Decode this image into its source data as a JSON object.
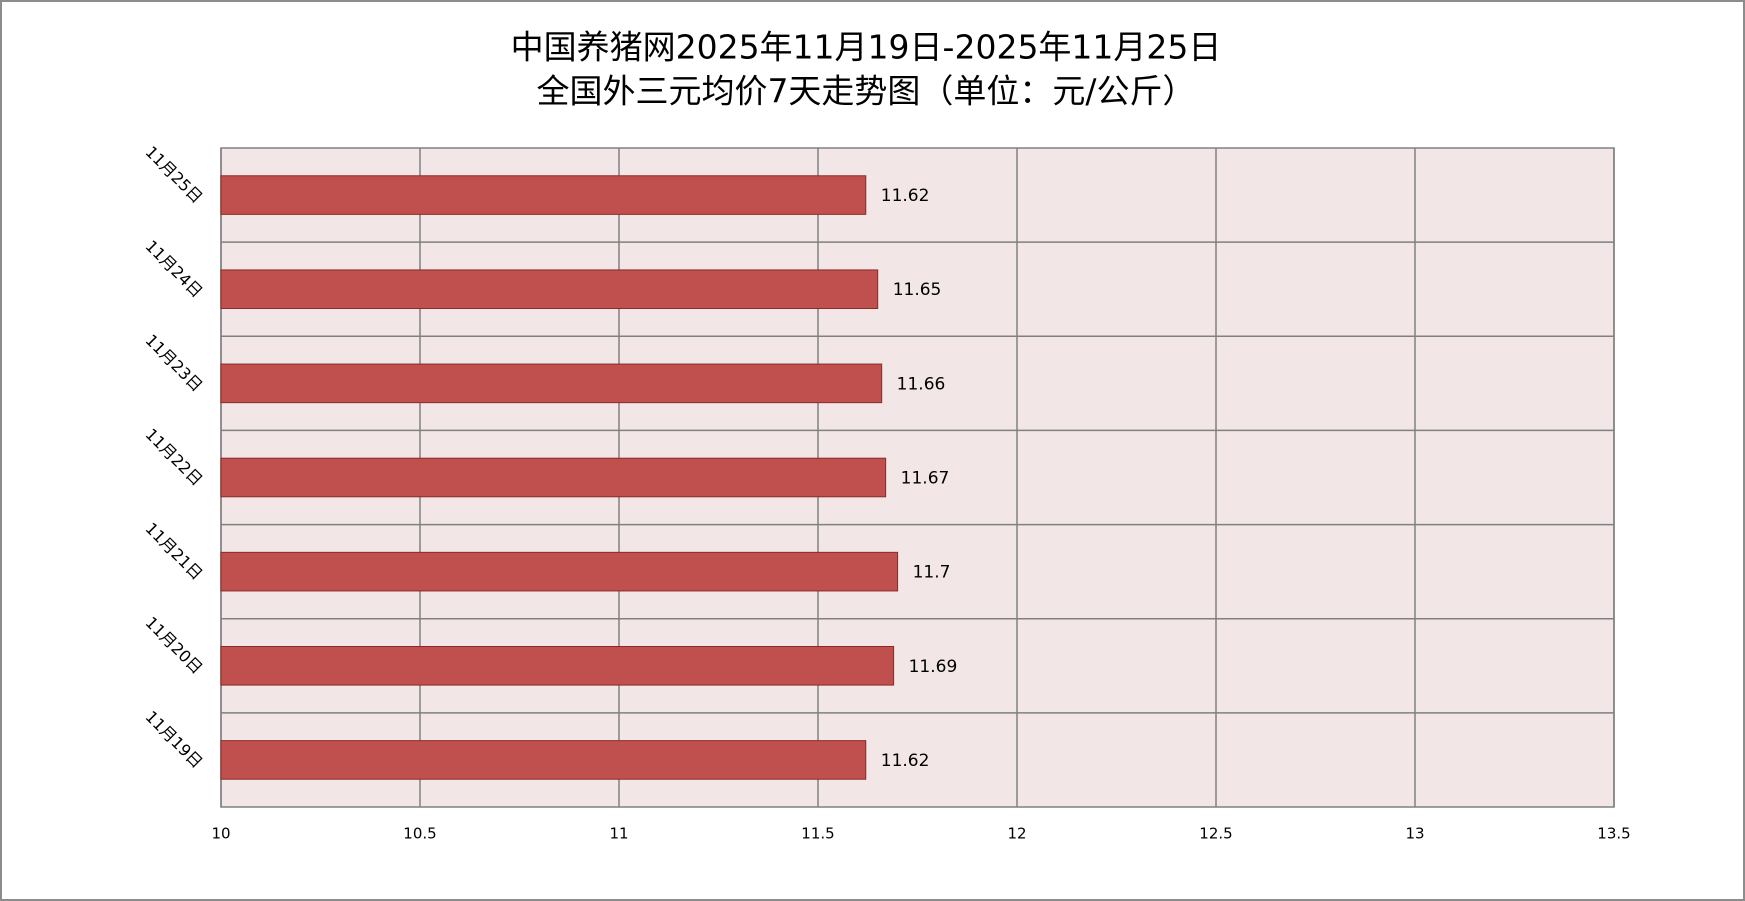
{
  "chart_data": {
    "type": "bar",
    "orientation": "horizontal",
    "title": "中国养猪网2025年11月19日-2025年11月25日",
    "subtitle": "全国外三元均价7天走势图（单位：元/公斤）",
    "categories": [
      "11月25日",
      "11月24日",
      "11月23日",
      "11月22日",
      "11月21日",
      "11月20日",
      "11月19日"
    ],
    "values": [
      11.62,
      11.65,
      11.66,
      11.67,
      11.7,
      11.69,
      11.62
    ],
    "color": "#c0504d",
    "xlim": [
      10,
      13.5
    ],
    "xticks": [
      10,
      10.5,
      11,
      11.5,
      12,
      12.5,
      13,
      13.5
    ],
    "grid": true
  }
}
